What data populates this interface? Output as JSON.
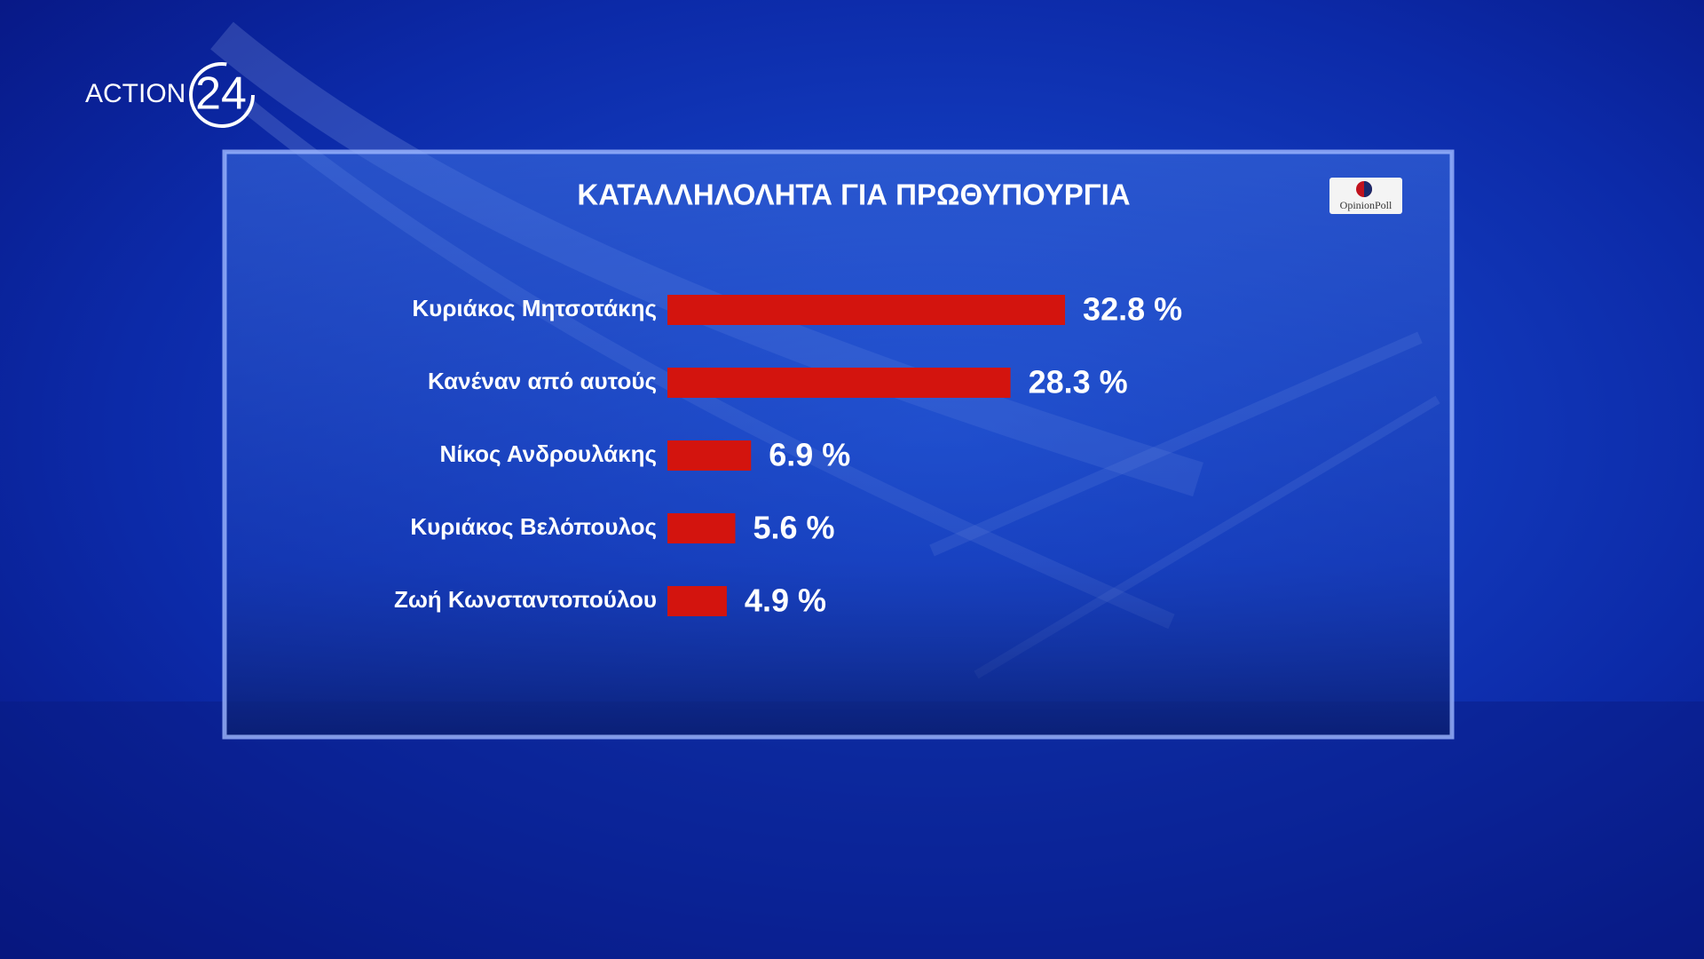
{
  "chart_data": {
    "type": "bar",
    "orientation": "horizontal",
    "title": "ΚΑΤΑΛΛΗΛΟΛΗΤΑ ΓΙΑ ΠΡΩΘΥΠΟΥΡΓΙΑ",
    "categories": [
      "Κυριάκος Μητσοτάκης",
      "Κανέναν από αυτούς",
      "Νίκος Ανδρουλάκης",
      "Κυριάκος Βελόπουλος",
      "Ζωή Κωνσταντοπούλου"
    ],
    "values": [
      32.8,
      28.3,
      6.9,
      5.6,
      4.9
    ],
    "value_labels": [
      "32.8 %",
      "28.3 %",
      "6.9 %",
      "5.6 %",
      "4.9 %"
    ],
    "color": "#d3140e"
  },
  "branding": {
    "channel": "ACTION",
    "channel_number": "24",
    "source": "OpinionPoll"
  }
}
